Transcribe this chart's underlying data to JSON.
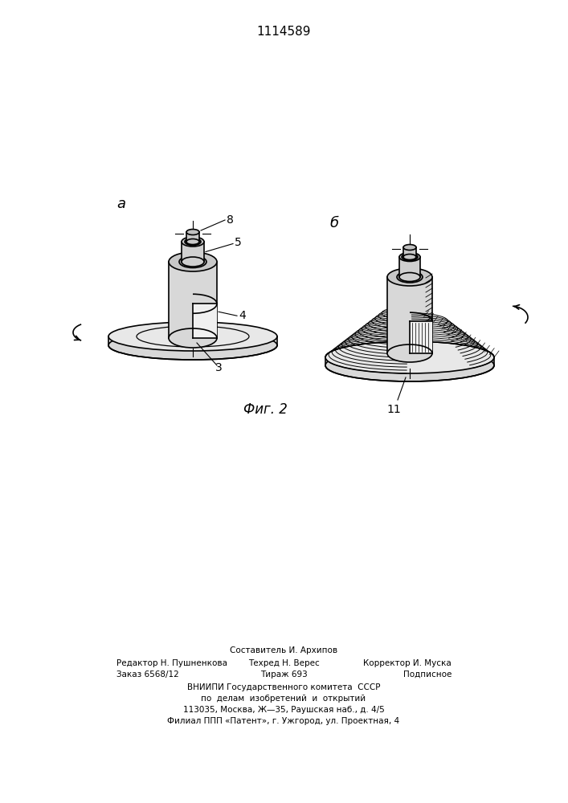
{
  "title": "1114589",
  "fig_caption": "Фиг. 2",
  "label_a": "а",
  "label_b": "б",
  "footer_top": "Составитель И. Архипов",
  "footer_line1_left": "Редактор Н. Пушненкова",
  "footer_line1_center": "Техред Н. Верес",
  "footer_line1_right": "Корректор И. Муска",
  "footer_line2_left": "Заказ 6568/12",
  "footer_line2_center": "Тираж 693",
  "footer_line2_right": "Подписное",
  "footer_line3": "ВНИИПИ Государственного комитета  СССР",
  "footer_line4": "по  делам  изобретений  и  открытий",
  "footer_line5": "113035, Москва, Ж—35, Раушская наб., д. 4/5",
  "footer_line6": "Филиал ППП «Патент», г. Ужгород, ул. Проектная, 4",
  "label_3": "3",
  "label_4": "4",
  "label_5": "5",
  "label_8": "8",
  "label_11": "11",
  "bg_color": "#ffffff",
  "line_color": "#000000"
}
